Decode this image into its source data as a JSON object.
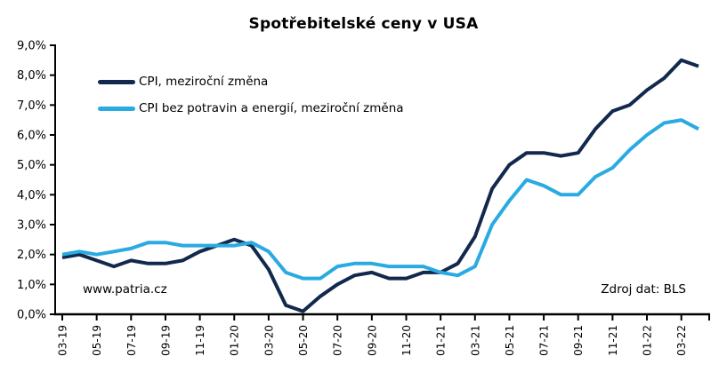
{
  "chart_data": {
    "type": "line",
    "title": "Spotřebitelské ceny v USA",
    "grid": "off",
    "legend_position": "top-left-inside",
    "annotations": {
      "watermark": "www.patria.cz",
      "source": "Zdroj dat: BLS"
    },
    "x_axis": {
      "tick_labels": [
        "03-19",
        "05-19",
        "07-19",
        "09-19",
        "11-19",
        "01-20",
        "03-20",
        "05-20",
        "07-20",
        "09-20",
        "11-20",
        "01-21",
        "03-21",
        "05-21",
        "07-21",
        "09-21",
        "11-21",
        "01-22",
        "03-22"
      ],
      "tick_every": 2,
      "categories": [
        "03-19",
        "04-19",
        "05-19",
        "06-19",
        "07-19",
        "08-19",
        "09-19",
        "10-19",
        "11-19",
        "12-19",
        "01-20",
        "02-20",
        "03-20",
        "04-20",
        "05-20",
        "06-20",
        "07-20",
        "08-20",
        "09-20",
        "10-20",
        "11-20",
        "12-20",
        "01-21",
        "02-21",
        "03-21",
        "04-21",
        "05-21",
        "06-21",
        "07-21",
        "08-21",
        "09-21",
        "10-21",
        "11-21",
        "12-21",
        "01-22",
        "02-22",
        "03-22",
        "04-22"
      ]
    },
    "y_axis": {
      "min": 0,
      "max": 9,
      "step": 1,
      "unit": "%",
      "ticks": [
        {
          "value": 9,
          "label": "9,0%"
        },
        {
          "value": 8,
          "label": "8,0%"
        },
        {
          "value": 7,
          "label": "7,0%"
        },
        {
          "value": 6,
          "label": "6,0%"
        },
        {
          "value": 5,
          "label": "5,0%"
        },
        {
          "value": 4,
          "label": "4,0%"
        },
        {
          "value": 3,
          "label": "3,0%"
        },
        {
          "value": 2,
          "label": "2,0%"
        },
        {
          "value": 1,
          "label": "1,0%"
        },
        {
          "value": 0,
          "label": "0,0%"
        }
      ]
    },
    "series": [
      {
        "name": "CPI, meziroční změna",
        "color": "#12294D",
        "values": [
          1.9,
          2.0,
          1.8,
          1.6,
          1.8,
          1.7,
          1.7,
          1.8,
          2.1,
          2.3,
          2.5,
          2.3,
          1.5,
          0.3,
          0.1,
          0.6,
          1.0,
          1.3,
          1.4,
          1.2,
          1.2,
          1.4,
          1.4,
          1.7,
          2.6,
          4.2,
          5.0,
          5.4,
          5.4,
          5.3,
          5.4,
          6.2,
          6.8,
          7.0,
          7.5,
          7.9,
          8.5,
          8.3
        ]
      },
      {
        "name": "CPI bez potravin a energií, meziroční změna",
        "color": "#29ABE2",
        "values": [
          2.0,
          2.1,
          2.0,
          2.1,
          2.2,
          2.4,
          2.4,
          2.3,
          2.3,
          2.3,
          2.3,
          2.4,
          2.1,
          1.4,
          1.2,
          1.2,
          1.6,
          1.7,
          1.7,
          1.6,
          1.6,
          1.6,
          1.4,
          1.3,
          1.6,
          3.0,
          3.8,
          4.5,
          4.3,
          4.0,
          4.0,
          4.6,
          4.9,
          5.5,
          6.0,
          6.4,
          6.5,
          6.2
        ]
      }
    ]
  }
}
